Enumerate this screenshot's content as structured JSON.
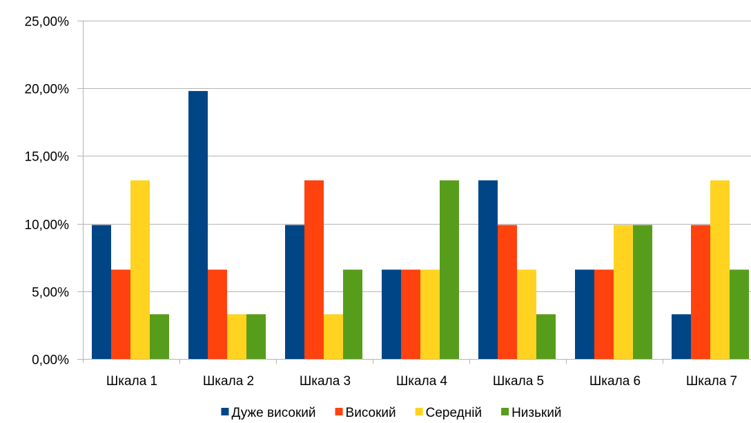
{
  "chart_data": {
    "type": "bar",
    "title": "",
    "xlabel": "",
    "ylabel": "",
    "categories": [
      "Шкала 1",
      "Шкала 2",
      "Шкала 3",
      "Шкала 4",
      "Шкала 5",
      "Шкала 6",
      "Шкала 7"
    ],
    "series": [
      {
        "name": "Дуже високий",
        "color": "#004586",
        "values": [
          9.9,
          19.8,
          9.9,
          6.6,
          13.2,
          6.6,
          3.3
        ]
      },
      {
        "name": "Високий",
        "color": "#ff420e",
        "values": [
          6.6,
          6.6,
          13.2,
          6.6,
          9.9,
          6.6,
          9.9
        ]
      },
      {
        "name": "Середній",
        "color": "#ffd320",
        "values": [
          13.2,
          3.3,
          3.3,
          6.6,
          6.6,
          9.9,
          13.2
        ]
      },
      {
        "name": "Низький",
        "color": "#579d1c",
        "values": [
          3.3,
          3.3,
          6.6,
          13.2,
          3.3,
          9.9,
          6.6
        ]
      }
    ],
    "ylim": [
      0,
      25
    ],
    "yticks": [
      0,
      5,
      10,
      15,
      20,
      25
    ],
    "ytick_labels": [
      "0,00%",
      "5,00%",
      "10,00%",
      "15,00%",
      "20,00%",
      "25,00%"
    ],
    "grid": true,
    "legend_position": "bottom"
  }
}
